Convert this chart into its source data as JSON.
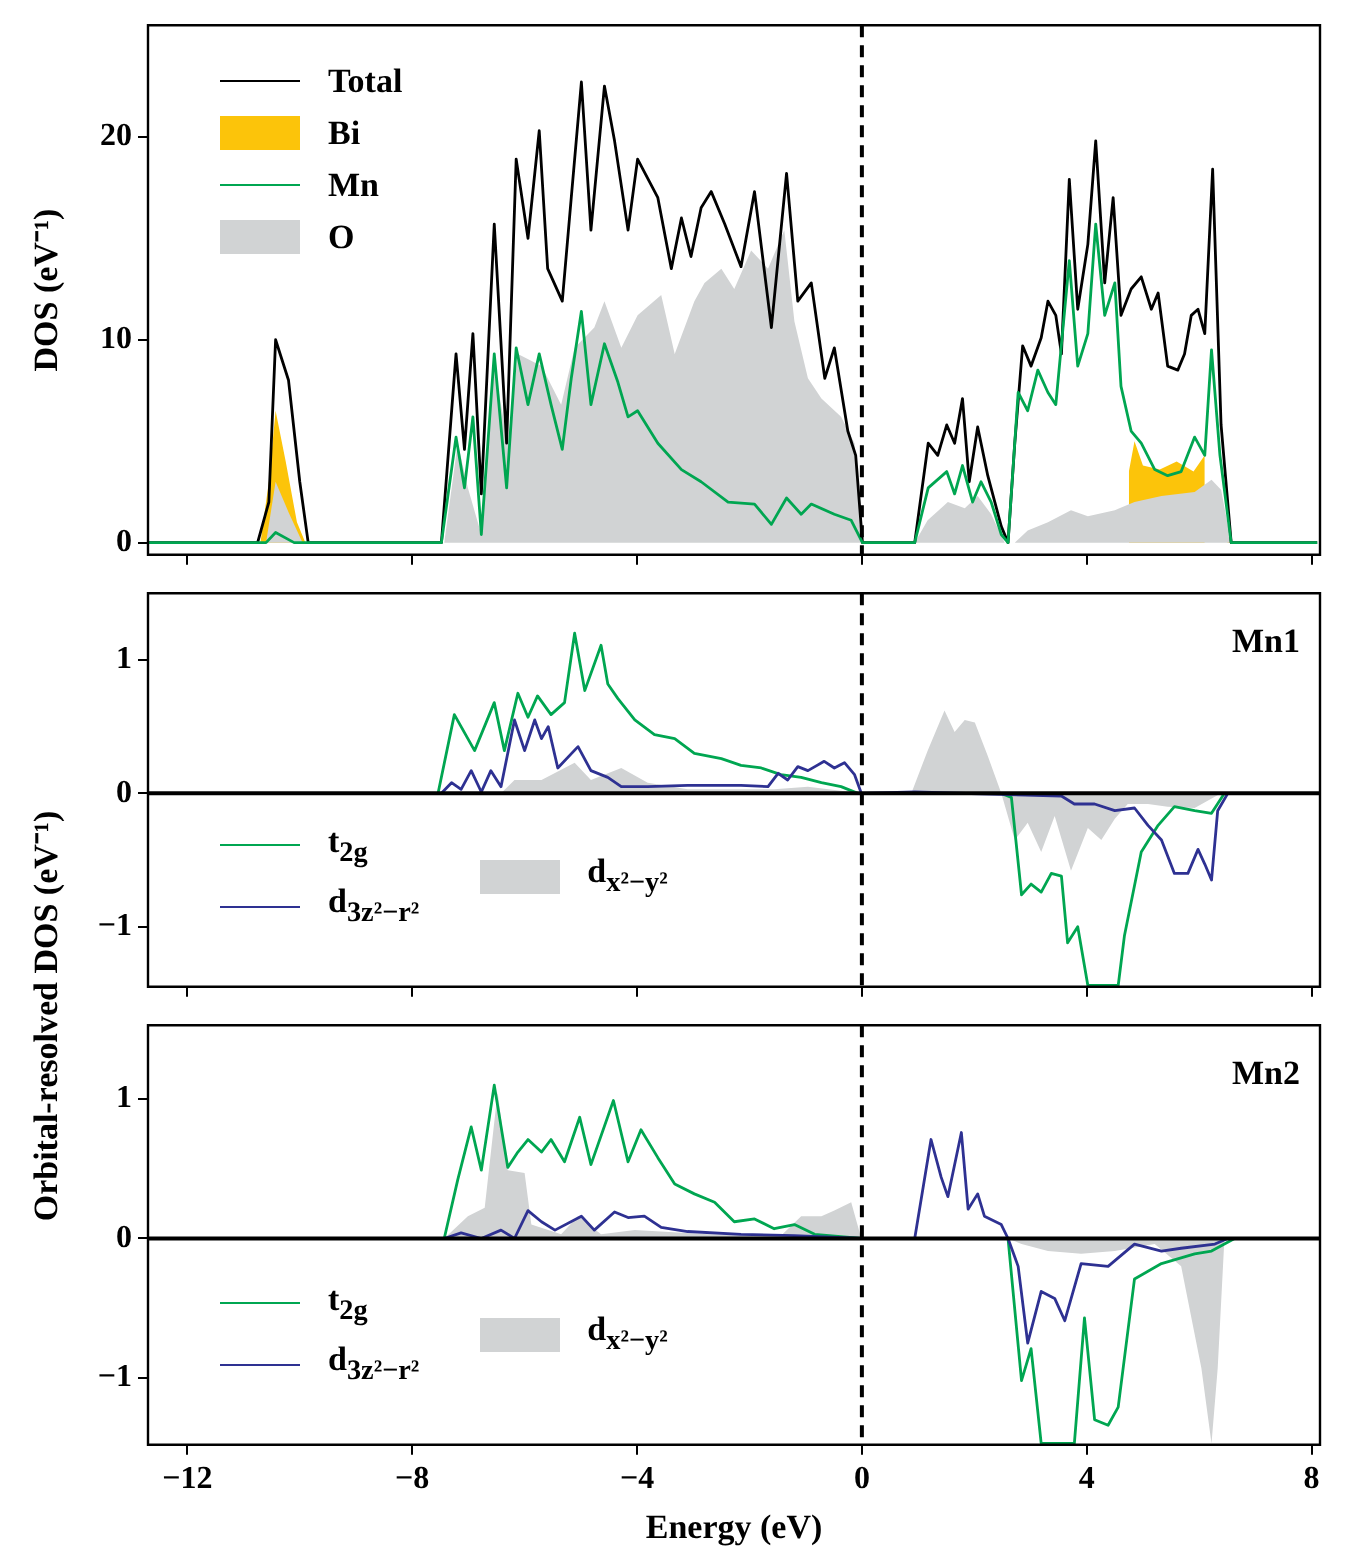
{
  "chart_data": [
    {
      "type": "line",
      "ylabel": "DOS (eV⁻¹)",
      "xlim": [
        -12.7,
        8.15
      ],
      "xticks": [
        {
          "value": -12,
          "label": null
        },
        {
          "value": -8,
          "label": null
        },
        {
          "value": -4,
          "label": null
        },
        {
          "value": 0,
          "label": null
        },
        {
          "value": 4,
          "label": null
        },
        {
          "value": 8,
          "label": null
        }
      ],
      "ylim": [
        -0.6,
        25.5
      ],
      "yticks": [
        0,
        10,
        20
      ],
      "tick_labels": "y",
      "legend": "top left",
      "grid": false,
      "ref_lines": [
        {
          "axis": "x",
          "value": 0,
          "line_style": "dashed",
          "color": "#000000"
        }
      ],
      "series": [
        {
          "name": "Total",
          "type": "line",
          "color": "#000000",
          "x": [
            -12.7,
            -10.75,
            -10.55,
            -10.43,
            -10.2,
            -10.0,
            -9.85,
            -7.48,
            -7.22,
            -7.07,
            -6.92,
            -6.77,
            -6.54,
            -6.32,
            -6.15,
            -5.94,
            -5.74,
            -5.59,
            -5.33,
            -5.17,
            -4.99,
            -4.82,
            -4.58,
            -4.4,
            -4.16,
            -3.99,
            -3.63,
            -3.39,
            -3.21,
            -3.04,
            -2.86,
            -2.68,
            -2.44,
            -2.15,
            -1.91,
            -1.61,
            -1.34,
            -1.14,
            -0.9,
            -0.66,
            -0.49,
            -0.25,
            -0.11,
            0.01,
            0.94,
            1.18,
            1.35,
            1.51,
            1.65,
            1.79,
            1.91,
            2.06,
            2.24,
            2.48,
            2.6,
            2.72,
            2.86,
            3.01,
            3.19,
            3.31,
            3.45,
            3.55,
            3.69,
            3.84,
            4.02,
            4.16,
            4.32,
            4.47,
            4.61,
            4.79,
            4.97,
            5.15,
            5.27,
            5.44,
            5.62,
            5.74,
            5.86,
            5.98,
            6.1,
            6.24,
            6.39,
            6.57,
            8.1
          ],
          "values": [
            0,
            0,
            2,
            10,
            8,
            3,
            0,
            0,
            9.3,
            4.6,
            10.3,
            2.4,
            15.7,
            4.9,
            18.9,
            15.0,
            20.3,
            13.5,
            11.9,
            17.0,
            22.7,
            15.4,
            22.5,
            19.8,
            15.4,
            18.9,
            17.0,
            13.5,
            16.0,
            14.1,
            16.5,
            17.3,
            15.7,
            13.6,
            17.3,
            10.6,
            18.2,
            11.9,
            12.8,
            8.1,
            9.6,
            5.5,
            4.3,
            0,
            0,
            4.9,
            4.3,
            5.8,
            4.9,
            7.1,
            3.0,
            5.7,
            3.3,
            0.8,
            0,
            4.9,
            9.7,
            8.7,
            10.1,
            11.9,
            11.2,
            9.3,
            17.9,
            11.5,
            14.7,
            19.8,
            12.8,
            17.0,
            11.2,
            12.5,
            13.1,
            11.5,
            12.3,
            8.7,
            8.5,
            9.3,
            11.2,
            11.5,
            10.3,
            18.4,
            5.8,
            0,
            0
          ]
        },
        {
          "name": "Bi",
          "type": "area",
          "color": "#fcc40a",
          "x": [
            -12.7,
            -10.7,
            -10.55,
            -10.43,
            -10.25,
            -10.05,
            -9.9,
            -7.45,
            -7.0,
            -6.3,
            -5.9,
            -5.5,
            -4.5,
            -3.0,
            -1.5,
            -0.6,
            -0.3,
            0.01,
            1.0,
            1.5,
            2.5,
            3.3,
            3.7,
            4.2,
            4.6,
            4.75,
            4.85,
            5.0,
            5.3,
            5.6,
            5.9,
            6.1,
            6.3,
            6.5,
            6.6,
            8.1
          ],
          "values": [
            0,
            0,
            3,
            6.5,
            4,
            1,
            0,
            null,
            null,
            null,
            null,
            null,
            null,
            null,
            null,
            null,
            null,
            null,
            null,
            null,
            null,
            null,
            null,
            null,
            null,
            3.5,
            5.0,
            3.8,
            3.6,
            4.0,
            3.5,
            4.3,
            null,
            0.5,
            0,
            0
          ]
        },
        {
          "name": "Mn",
          "type": "line",
          "color": "#00a651",
          "x": [
            -12.7,
            -10.6,
            -10.43,
            -10.1,
            -7.48,
            -7.22,
            -7.07,
            -6.92,
            -6.77,
            -6.54,
            -6.32,
            -6.15,
            -5.94,
            -5.74,
            -5.53,
            -5.33,
            -5.17,
            -4.99,
            -4.82,
            -4.58,
            -4.34,
            -4.16,
            -3.99,
            -3.63,
            -3.21,
            -2.86,
            -2.38,
            -1.91,
            -1.61,
            -1.34,
            -1.08,
            -0.9,
            -0.49,
            -0.19,
            0.01,
            0.94,
            1.18,
            1.51,
            1.65,
            1.79,
            1.97,
            2.12,
            2.3,
            2.48,
            2.6,
            2.78,
            2.95,
            3.13,
            3.31,
            3.45,
            3.69,
            3.84,
            4.02,
            4.16,
            4.32,
            4.5,
            4.61,
            4.79,
            4.97,
            5.21,
            5.44,
            5.68,
            5.92,
            6.1,
            6.22,
            6.37,
            6.57,
            8.1
          ],
          "values": [
            0,
            0,
            0.5,
            0,
            0,
            5.2,
            2.7,
            6.2,
            0.4,
            9.3,
            2.7,
            9.6,
            6.8,
            9.3,
            6.8,
            4.6,
            8.1,
            11.4,
            6.8,
            9.8,
            7.9,
            6.2,
            6.5,
            4.9,
            3.6,
            3.0,
            2.0,
            1.9,
            0.9,
            2.2,
            1.4,
            1.9,
            1.4,
            1.1,
            0,
            0,
            2.7,
            3.5,
            2.4,
            3.8,
            2.0,
            3.0,
            2.0,
            0.4,
            0,
            7.4,
            6.5,
            8.5,
            7.4,
            6.8,
            13.9,
            8.7,
            10.3,
            15.7,
            11.2,
            12.8,
            7.7,
            5.5,
            4.9,
            3.6,
            3.3,
            3.5,
            5.2,
            4.3,
            9.5,
            4.3,
            0,
            0
          ]
        },
        {
          "name": "O",
          "type": "area",
          "color": "#d1d3d4",
          "x": [
            -12.7,
            -10.6,
            -10.43,
            -10.2,
            -9.95,
            -7.43,
            -7.19,
            -7.01,
            -6.77,
            -6.54,
            -6.3,
            -6.12,
            -5.7,
            -5.35,
            -5.11,
            -4.76,
            -4.58,
            -4.28,
            -3.99,
            -3.57,
            -3.33,
            -2.98,
            -2.8,
            -2.5,
            -2.27,
            -1.97,
            -1.67,
            -1.38,
            -1.2,
            -0.96,
            -0.72,
            -0.37,
            -0.13,
            0.01,
            0.94,
            1.17,
            1.53,
            1.83,
            2.06,
            2.3,
            2.54,
            2.72,
            2.95,
            3.31,
            3.72,
            4.02,
            4.5,
            4.85,
            5.33,
            5.92,
            6.22,
            6.39,
            6.57,
            8.1
          ],
          "values": [
            0,
            0,
            3,
            1.5,
            0,
            0,
            4.9,
            2.7,
            0.4,
            8.7,
            4.9,
            9.3,
            8.7,
            6.8,
            9.6,
            10.6,
            11.9,
            9.6,
            11.2,
            12.2,
            9.3,
            11.9,
            12.8,
            13.5,
            12.5,
            14.4,
            13.5,
            15.4,
            10.9,
            8.1,
            7.1,
            6.2,
            4.9,
            0,
            0,
            1.1,
            2.0,
            1.7,
            2.3,
            1.4,
            0,
            0,
            0.6,
            1.0,
            1.6,
            1.3,
            1.6,
            2.0,
            2.3,
            2.5,
            3.1,
            2.6,
            0,
            0
          ]
        }
      ]
    },
    {
      "type": "line",
      "ylabel": "Orbital-resolved DOS (eV⁻¹)",
      "annotations": [
        "Mn1"
      ],
      "xlim": [
        -12.7,
        8.15
      ],
      "xticks": [
        {
          "value": -12,
          "label": null
        },
        {
          "value": -8,
          "label": null
        },
        {
          "value": -4,
          "label": null
        },
        {
          "value": 0,
          "label": null
        },
        {
          "value": 4,
          "label": null
        },
        {
          "value": 8,
          "label": null
        }
      ],
      "ylim": [
        -1.45,
        1.5
      ],
      "yticks": [
        {
          "value": -1,
          "label": "−1"
        },
        0,
        1
      ],
      "tick_labels": "y",
      "legend": "bottom left",
      "grid": false,
      "ref_lines": [
        {
          "axis": "x",
          "value": 0,
          "line_style": "dashed",
          "color": "#000000"
        },
        {
          "axis": "y",
          "value": 0,
          "line_style": "solid",
          "color": "#000000"
        }
      ],
      "series": [
        {
          "name": "t$_{2g}$",
          "type": "line",
          "color": "#00a651",
          "x": [
            -7.54,
            -7.25,
            -6.89,
            -6.54,
            -6.36,
            -6.12,
            -5.94,
            -5.77,
            -5.53,
            -5.29,
            -5.11,
            -4.93,
            -4.64,
            -4.52,
            -4.34,
            -4.04,
            -3.69,
            -3.33,
            -2.98,
            -2.5,
            -2.15,
            -1.79,
            -1.44,
            -1.08,
            -0.72,
            -0.37,
            -0.07,
            2.48,
            2.66,
            2.84,
            3.01,
            3.19,
            3.37,
            3.55,
            3.66,
            3.84,
            4.02,
            4.2,
            4.56,
            4.67,
            4.97,
            5.27,
            5.56,
            5.92,
            6.22,
            6.45
          ],
          "values": [
            0,
            0.59,
            0.32,
            0.68,
            0.32,
            0.75,
            0.57,
            0.73,
            0.59,
            0.68,
            1.2,
            0.77,
            1.11,
            0.82,
            0.71,
            0.55,
            0.44,
            0.41,
            0.3,
            0.26,
            0.21,
            0.19,
            0.14,
            0.12,
            0.08,
            0.05,
            0,
            0,
            -0.03,
            -0.76,
            -0.68,
            -0.74,
            -0.6,
            -0.62,
            -1.12,
            -1.0,
            -1.44,
            -1.44,
            -1.44,
            -1.07,
            -0.44,
            -0.24,
            -0.1,
            -0.13,
            -0.15,
            0
          ]
        },
        {
          "name": "d$_{3z²−r²}$",
          "type": "line",
          "color": "#2e3192",
          "x": [
            -7.48,
            -7.3,
            -7.13,
            -6.95,
            -6.77,
            -6.6,
            -6.42,
            -6.18,
            -6.0,
            -5.82,
            -5.7,
            -5.58,
            -5.41,
            -5.05,
            -4.82,
            -4.52,
            -4.28,
            -3.81,
            -3.1,
            -2.15,
            -1.67,
            -1.49,
            -1.32,
            -1.14,
            -0.96,
            -0.67,
            -0.49,
            -0.31,
            -0.13,
            -0.01,
            0.94,
            3.55,
            3.78,
            4.14,
            4.5,
            4.85,
            5.09,
            5.33,
            5.56,
            5.8,
            5.98,
            6.1,
            6.22,
            6.33,
            6.51
          ],
          "values": [
            0,
            0.08,
            0.03,
            0.17,
            0.01,
            0.17,
            0.05,
            0.55,
            0.32,
            0.55,
            0.41,
            0.5,
            0.19,
            0.35,
            0.17,
            0.12,
            0.05,
            0.05,
            0.06,
            0.06,
            0.05,
            0.15,
            0.1,
            0.2,
            0.17,
            0.24,
            0.19,
            0.23,
            0.14,
            0,
            0.01,
            -0.02,
            -0.08,
            -0.08,
            -0.13,
            -0.11,
            -0.24,
            -0.35,
            -0.6,
            -0.6,
            -0.42,
            -0.53,
            -0.65,
            -0.13,
            0
          ]
        },
        {
          "name": "d$_{x²−y²}$",
          "type": "area",
          "color": "#d1d3d4",
          "x": [
            -6.42,
            -6.18,
            -5.7,
            -5.11,
            -4.82,
            -4.28,
            -3.81,
            -3.1,
            -1.56,
            -0.96,
            -0.01,
            0.88,
            1.17,
            1.47,
            1.65,
            1.83,
            2.01,
            2.24,
            2.48,
            2.72,
            2.95,
            3.19,
            3.43,
            3.72,
            4.02,
            4.26,
            4.5,
            4.73,
            5.09,
            5.44,
            5.92,
            6.39
          ],
          "values": [
            0,
            0.1,
            0.1,
            0.23,
            0.1,
            0.19,
            0.08,
            0.03,
            0.03,
            0.05,
            0,
            0,
            0.32,
            0.62,
            0.46,
            0.55,
            0.53,
            0.28,
            0,
            -0.35,
            -0.22,
            -0.44,
            -0.17,
            -0.58,
            -0.26,
            -0.35,
            -0.19,
            -0.08,
            -0.08,
            -0.1,
            -0.11,
            0
          ]
        }
      ]
    },
    {
      "type": "line",
      "xlabel": "Energy (eV)",
      "annotations": [
        "Mn2"
      ],
      "xlim": [
        -12.7,
        8.15
      ],
      "xticks": [
        {
          "value": -12,
          "label": "−12"
        },
        {
          "value": -8,
          "label": "−8"
        },
        {
          "value": -4,
          "label": "−4"
        },
        0,
        4,
        8
      ],
      "ylim": [
        -1.48,
        1.53
      ],
      "yticks": [
        {
          "value": -1,
          "label": "−1"
        },
        0,
        1
      ],
      "legend": "bottom left",
      "grid": false,
      "ref_lines": [
        {
          "axis": "x",
          "value": 0,
          "line_style": "dashed",
          "color": "#000000"
        },
        {
          "axis": "y",
          "value": 0,
          "line_style": "solid",
          "color": "#000000"
        }
      ],
      "series": [
        {
          "name": "t$_{2g}$",
          "type": "line",
          "color": "#00a651",
          "x": [
            -7.43,
            -7.19,
            -6.95,
            -6.77,
            -6.54,
            -6.3,
            -6.12,
            -5.94,
            -5.7,
            -5.53,
            -5.29,
            -5.02,
            -4.82,
            -4.42,
            -4.16,
            -3.93,
            -3.63,
            -3.33,
            -2.98,
            -2.62,
            -2.27,
            -1.91,
            -1.56,
            -1.2,
            -0.84,
            -0.01,
            2.6,
            2.84,
            3.01,
            3.19,
            3.78,
            3.96,
            4.14,
            4.38,
            4.56,
            4.85,
            5.33,
            5.92,
            6.22,
            6.63
          ],
          "values": [
            0,
            0.42,
            0.8,
            0.49,
            1.1,
            0.51,
            0.62,
            0.71,
            0.62,
            0.71,
            0.55,
            0.87,
            0.53,
            0.99,
            0.55,
            0.78,
            0.58,
            0.39,
            0.32,
            0.26,
            0.12,
            0.14,
            0.07,
            0.1,
            0.03,
            0,
            0,
            -1.02,
            -0.79,
            -1.47,
            -1.47,
            -0.57,
            -1.3,
            -1.34,
            -1.21,
            -0.29,
            -0.18,
            -0.11,
            -0.09,
            0
          ]
        },
        {
          "name": "d$_{3z²−r²}$",
          "type": "line",
          "color": "#2e3192",
          "x": [
            -7.43,
            -7.13,
            -6.77,
            -6.42,
            -6.18,
            -5.94,
            -5.7,
            -5.46,
            -4.99,
            -4.76,
            -4.4,
            -4.16,
            -3.87,
            -3.57,
            -3.1,
            -2.15,
            -1.2,
            -0.01,
            0.94,
            1.23,
            1.41,
            1.53,
            1.77,
            1.89,
            2.06,
            2.18,
            2.48,
            2.6,
            2.78,
            2.95,
            3.19,
            3.43,
            3.61,
            3.9,
            4.38,
            4.85,
            5.33,
            5.68,
            6.28,
            6.51
          ],
          "values": [
            0,
            0.04,
            0,
            0.06,
            0,
            0.2,
            0.12,
            0.06,
            0.16,
            0.06,
            0.19,
            0.15,
            0.16,
            0.08,
            0.05,
            0.03,
            0.02,
            0,
            0,
            0.71,
            0.44,
            0.3,
            0.76,
            0.21,
            0.32,
            0.16,
            0.1,
            0,
            -0.2,
            -0.75,
            -0.38,
            -0.43,
            -0.59,
            -0.18,
            -0.2,
            -0.04,
            -0.09,
            -0.07,
            -0.04,
            0
          ]
        },
        {
          "name": "d$_{x²−y²}$",
          "type": "area",
          "color": "#d1d3d4",
          "x": [
            -7.43,
            -7.01,
            -6.71,
            -6.48,
            -6.3,
            -6.0,
            -5.88,
            -5.35,
            -5.05,
            -4.64,
            -4.04,
            -2.74,
            -1.44,
            -1.08,
            -0.72,
            -0.49,
            -0.19,
            -0.01,
            2.6,
            2.84,
            3.31,
            3.9,
            4.5,
            5.21,
            5.68,
            6.04,
            6.22,
            6.33,
            6.45
          ],
          "values": [
            0,
            0.16,
            0.22,
            1.05,
            0.49,
            0.47,
            0.1,
            0.03,
            0.16,
            0.03,
            0.06,
            0.03,
            0.02,
            0.16,
            0.16,
            0.2,
            0.26,
            0,
            0,
            -0.04,
            -0.09,
            -0.11,
            -0.09,
            -0.04,
            -0.2,
            -0.93,
            -1.47,
            -0.93,
            0
          ]
        }
      ]
    }
  ]
}
